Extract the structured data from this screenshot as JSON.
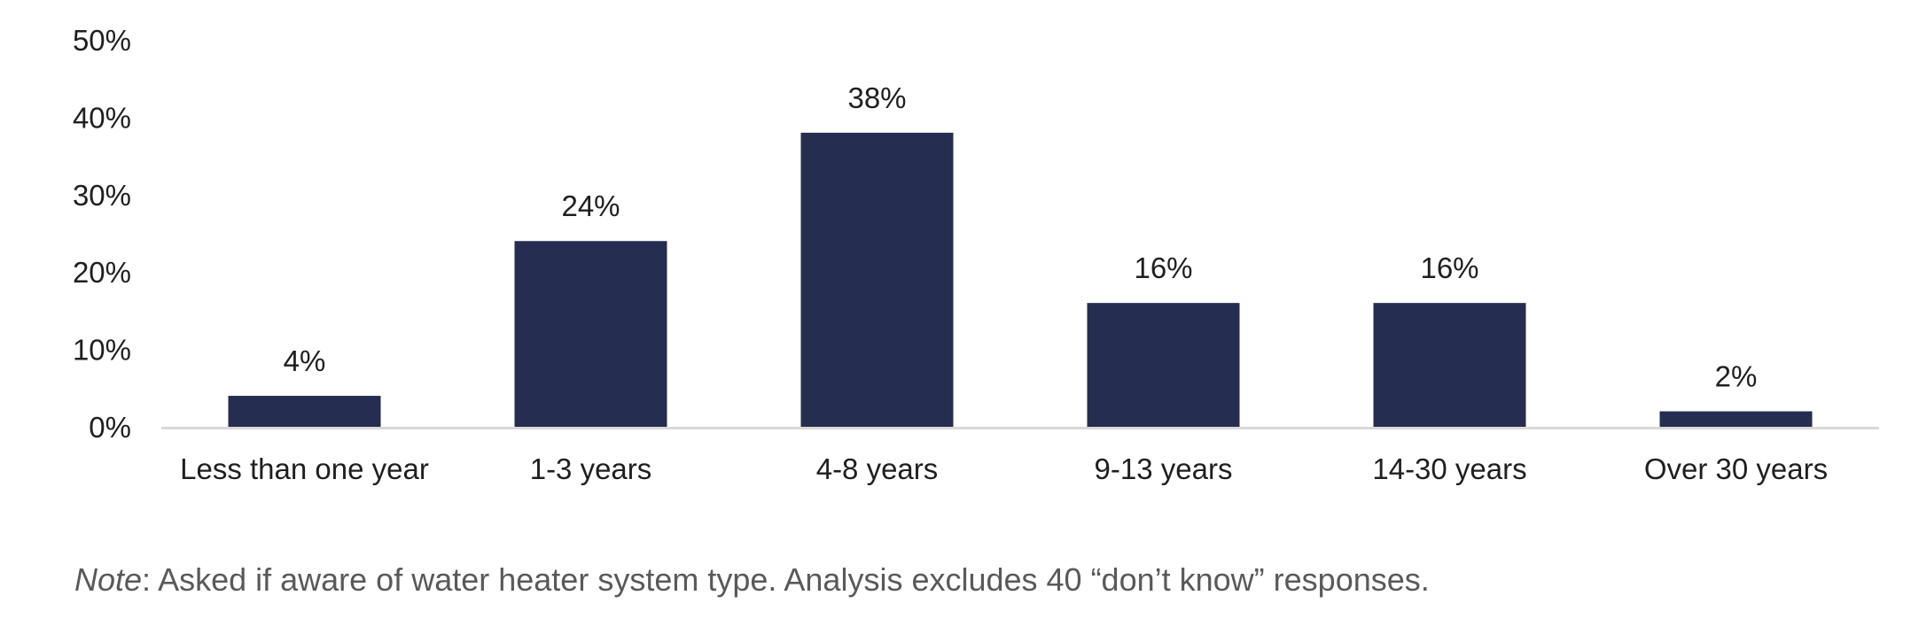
{
  "chart_data": {
    "type": "bar",
    "categories": [
      "Less than one year",
      "1-3 years",
      "4-8 years",
      "9-13 years",
      "14-30 years",
      "Over 30 years"
    ],
    "values": [
      4,
      24,
      38,
      16,
      16,
      2
    ],
    "data_labels": [
      "4%",
      "24%",
      "38%",
      "16%",
      "16%",
      "2%"
    ],
    "y_ticks": [
      "0%",
      "10%",
      "20%",
      "30%",
      "40%",
      "50%"
    ],
    "ylim": [
      0,
      50
    ],
    "grid": false,
    "bar_color": "#252e50",
    "axis_color": "#d9d9d9"
  },
  "note": {
    "prefix": "Note",
    "text": ": Asked if aware of water heater system type. Analysis excludes 40 “don’t know” responses."
  }
}
